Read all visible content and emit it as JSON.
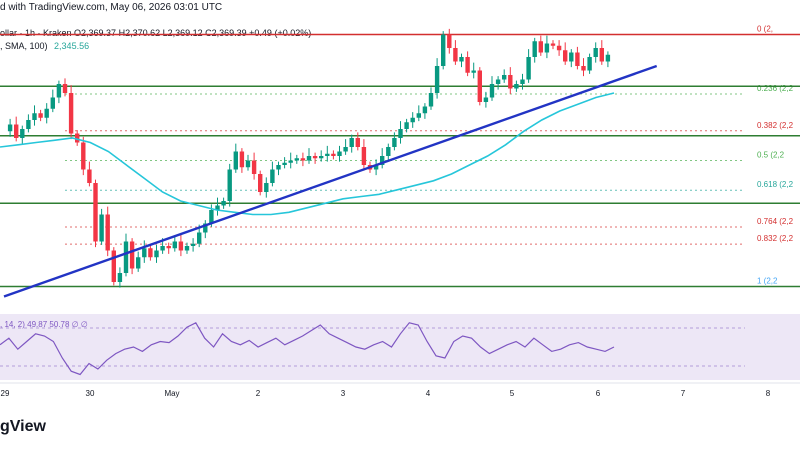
{
  "header": {
    "line1": "d with TradingView.com, May 06, 2026 03:01 UTC",
    "line2": "ollar · 1h · Kraken  O2,369.37  H2,370.62  L2,369.12  C2,369.39  +0.49 (+0.02%)",
    "line3_prefix": ", SMA, 100)",
    "sma_value": "2,345.56"
  },
  "rsi_legend": ", 14, 2)  49.87  50.78  ∅  ∅",
  "logo_text": "gView",
  "colors": {
    "up": "#089981",
    "down": "#f23645",
    "sma": "#26c6da",
    "trend": "#2234c4",
    "fib": "#4caf50",
    "rsi_bg": "#ede7f6",
    "rsi": "#7e57c2"
  },
  "chart_data": {
    "type": "candlestick",
    "x_tick_labels": [
      "29",
      "30",
      "May",
      "2",
      "3",
      "4",
      "5",
      "6",
      "7",
      "8"
    ],
    "fib_levels": [
      {
        "label": "0 (2,",
        "ratio": 0
      },
      {
        "label": "0.236 (2,2",
        "ratio": 0.236
      },
      {
        "label": "0.382 (2,2",
        "ratio": 0.382
      },
      {
        "label": "0.5 (2,2",
        "ratio": 0.5
      },
      {
        "label": "0.618 (2,2",
        "ratio": 0.618
      },
      {
        "label": "0.764 (2,2",
        "ratio": 0.764
      },
      {
        "label": "0.832 (2,2",
        "ratio": 0.832
      },
      {
        "label": "1 (2,2",
        "ratio": 1
      }
    ],
    "price_path": [
      2335,
      2338,
      2332,
      2336,
      2340,
      2343,
      2341,
      2345,
      2350,
      2356,
      2352,
      2334,
      2330,
      2318,
      2312,
      2286,
      2298,
      2282,
      2268,
      2272,
      2286,
      2274,
      2279,
      2283,
      2279,
      2282,
      2284,
      2283,
      2286,
      2282,
      2284,
      2285,
      2290,
      2294,
      2300,
      2302,
      2304,
      2318,
      2326,
      2319,
      2322,
      2316,
      2308,
      2312,
      2318,
      2320,
      2321,
      2322,
      2323,
      2322,
      2324,
      2323,
      2324,
      2325,
      2324,
      2326,
      2328,
      2332,
      2328,
      2320,
      2318,
      2320,
      2324,
      2328,
      2332,
      2336,
      2339,
      2341,
      2343,
      2346,
      2352,
      2364,
      2378,
      2372,
      2366,
      2368,
      2361,
      2362,
      2348,
      2350,
      2356,
      2358,
      2360,
      2354,
      2356,
      2358,
      2368,
      2375,
      2370,
      2374,
      2373,
      2371,
      2366,
      2370,
      2364,
      2362,
      2368,
      2372,
      2366,
      2369
    ],
    "sma_path": [
      2328,
      2329,
      2330,
      2331,
      2332,
      2330,
      2326,
      2320,
      2314,
      2308,
      2304,
      2302,
      2300,
      2299,
      2298,
      2298,
      2299,
      2301,
      2303,
      2305,
      2306,
      2307,
      2309,
      2311,
      2313,
      2316,
      2320,
      2324,
      2329,
      2335,
      2340,
      2344,
      2347,
      2350,
      2352
    ],
    "trendline": {
      "start": [
        0,
        2266
      ],
      "end": [
        120,
        2366
      ]
    },
    "rsi_path": [
      52,
      58,
      48,
      55,
      62,
      60,
      55,
      40,
      28,
      25,
      35,
      30,
      38,
      44,
      48,
      50,
      46,
      52,
      55,
      54,
      60,
      68,
      72,
      58,
      50,
      62,
      55,
      52,
      56,
      50,
      54,
      58,
      52,
      56,
      60,
      65,
      70,
      62,
      58,
      54,
      50,
      48,
      52,
      55,
      50,
      62,
      72,
      70,
      55,
      42,
      40,
      55,
      60,
      58,
      50,
      44,
      48,
      52,
      55,
      50,
      58,
      52,
      46,
      48,
      52,
      54,
      50,
      48,
      46,
      50
    ]
  }
}
